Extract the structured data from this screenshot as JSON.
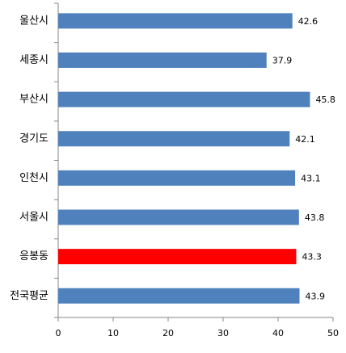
{
  "chart_data": {
    "type": "barh",
    "categories": [
      "울산시",
      "세종시",
      "부산시",
      "경기도",
      "인천시",
      "서울시",
      "응봉동",
      "전국평균"
    ],
    "values": [
      42.6,
      37.9,
      45.8,
      42.1,
      43.1,
      43.8,
      43.3,
      43.9
    ],
    "colors": [
      "#4f81bd",
      "#4f81bd",
      "#4f81bd",
      "#4f81bd",
      "#4f81bd",
      "#4f81bd",
      "#ff0000",
      "#4f81bd"
    ],
    "xlim": [
      0,
      50
    ],
    "xticks": [
      0,
      10,
      20,
      30,
      40,
      50
    ],
    "grid": false
  }
}
